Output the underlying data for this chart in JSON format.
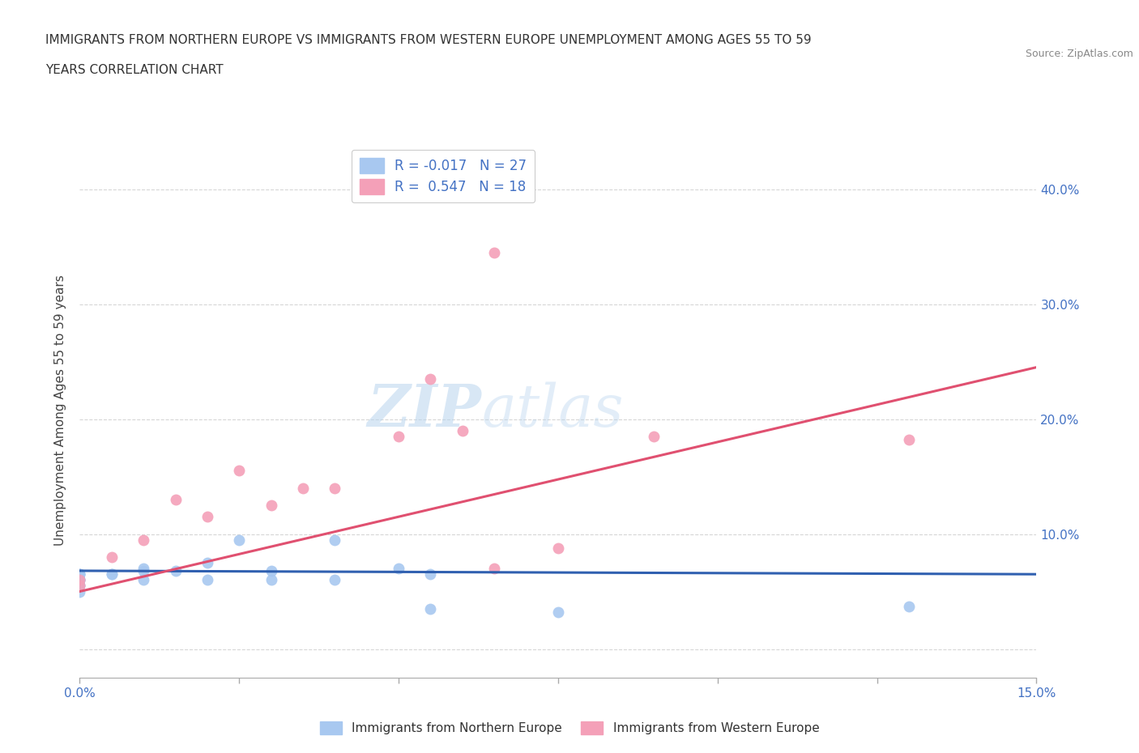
{
  "title_line1": "IMMIGRANTS FROM NORTHERN EUROPE VS IMMIGRANTS FROM WESTERN EUROPE UNEMPLOYMENT AMONG AGES 55 TO 59",
  "title_line2": "YEARS CORRELATION CHART",
  "source": "Source: ZipAtlas.com",
  "ylabel": "Unemployment Among Ages 55 to 59 years",
  "xlim": [
    0.0,
    0.15
  ],
  "ylim": [
    -0.025,
    0.44
  ],
  "yticks": [
    0.0,
    0.1,
    0.2,
    0.3,
    0.4
  ],
  "xticks": [
    0.0,
    0.025,
    0.05,
    0.075,
    0.1,
    0.125,
    0.15
  ],
  "blue_color": "#A8C8F0",
  "pink_color": "#F4A0B8",
  "blue_line_color": "#3060B0",
  "pink_line_color": "#E05070",
  "legend_R_blue": "-0.017",
  "legend_N_blue": "27",
  "legend_R_pink": "0.547",
  "legend_N_pink": "18",
  "watermark_ZIP": "ZIP",
  "watermark_atlas": "atlas",
  "blue_scatter_x": [
    0.0,
    0.0,
    0.0,
    0.0,
    0.0,
    0.0,
    0.0,
    0.0,
    0.0,
    0.005,
    0.005,
    0.01,
    0.01,
    0.01,
    0.015,
    0.02,
    0.02,
    0.025,
    0.03,
    0.03,
    0.04,
    0.04,
    0.05,
    0.055,
    0.055,
    0.075,
    0.13
  ],
  "blue_scatter_y": [
    0.065,
    0.065,
    0.065,
    0.06,
    0.06,
    0.06,
    0.055,
    0.055,
    0.05,
    0.065,
    0.065,
    0.07,
    0.068,
    0.06,
    0.068,
    0.075,
    0.06,
    0.095,
    0.068,
    0.06,
    0.06,
    0.095,
    0.07,
    0.065,
    0.035,
    0.032,
    0.037
  ],
  "pink_scatter_x": [
    0.0,
    0.0,
    0.005,
    0.01,
    0.015,
    0.02,
    0.025,
    0.03,
    0.035,
    0.04,
    0.05,
    0.055,
    0.06,
    0.065,
    0.065,
    0.075,
    0.09,
    0.13
  ],
  "pink_scatter_y": [
    0.06,
    0.055,
    0.08,
    0.095,
    0.13,
    0.115,
    0.155,
    0.125,
    0.14,
    0.14,
    0.185,
    0.235,
    0.19,
    0.07,
    0.345,
    0.088,
    0.185,
    0.182
  ],
  "blue_trend_x": [
    0.0,
    0.15
  ],
  "blue_trend_y": [
    0.068,
    0.065
  ],
  "pink_trend_x": [
    0.0,
    0.15
  ],
  "pink_trend_y": [
    0.05,
    0.245
  ]
}
